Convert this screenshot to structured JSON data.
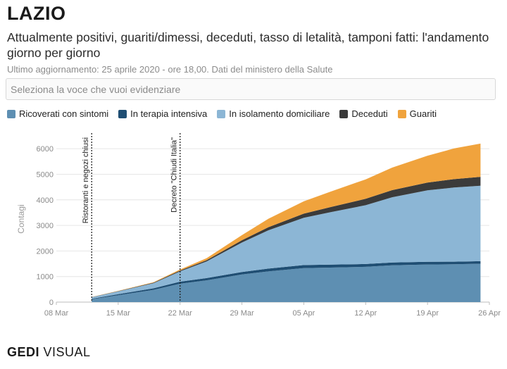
{
  "header": {
    "title": "LAZIO",
    "subtitle": "Attualmente positivi, guariti/dimessi, deceduti, tasso di letalità, tamponi fatti: l'andamento giorno per giorno",
    "updated": "Ultimo aggiornamento: 25 aprile 2020 - ore 18,00. Dati del ministero della Salute"
  },
  "selector": {
    "placeholder": "Seleziona la voce che vuoi evidenziare"
  },
  "brand": {
    "bold": "GEDI",
    "light": " VISUAL"
  },
  "colors": {
    "ricoverati": "#5e8fb2",
    "terapia": "#1f4e73",
    "isolamento": "#8cb6d5",
    "deceduti": "#3b3b3b",
    "guariti": "#f0a33d"
  },
  "chart_data": {
    "type": "area",
    "stacked": true,
    "ylabel": "Contagi",
    "xlabel": "",
    "ylim": [
      0,
      6500
    ],
    "yticks": [
      0,
      1000,
      2000,
      3000,
      4000,
      5000,
      6000
    ],
    "xticks": [
      "08 Mar",
      "15 Mar",
      "22 Mar",
      "29 Mar",
      "05 Apr",
      "12 Apr",
      "19 Apr",
      "26 Apr"
    ],
    "x": [
      "2020-03-12",
      "2020-03-15",
      "2020-03-19",
      "2020-03-22",
      "2020-03-25",
      "2020-03-29",
      "2020-04-01",
      "2020-04-05",
      "2020-04-08",
      "2020-04-12",
      "2020-04-15",
      "2020-04-19",
      "2020-04-22",
      "2020-04-25"
    ],
    "series": [
      {
        "key": "ricoverati",
        "name": "Ricoverati con sintomi",
        "values": [
          110,
          270,
          480,
          720,
          850,
          1080,
          1200,
          1330,
          1350,
          1380,
          1440,
          1470,
          1480,
          1500
        ]
      },
      {
        "key": "terapia",
        "name": "In terapia intensiva",
        "values": [
          20,
          40,
          60,
          80,
          90,
          100,
          110,
          120,
          115,
          110,
          110,
          105,
          100,
          100
        ]
      },
      {
        "key": "isolamento",
        "name": "In isolamento domiciliare",
        "values": [
          60,
          110,
          200,
          400,
          650,
          1150,
          1500,
          1850,
          2050,
          2300,
          2550,
          2800,
          2900,
          2950
        ]
      },
      {
        "key": "deceduti",
        "name": "Deceduti",
        "values": [
          5,
          10,
          20,
          35,
          50,
          90,
          120,
          160,
          200,
          250,
          280,
          300,
          330,
          350
        ]
      },
      {
        "key": "guariti",
        "name": "Guariti",
        "values": [
          5,
          10,
          20,
          40,
          80,
          200,
          330,
          480,
          600,
          760,
          880,
          1050,
          1200,
          1300
        ]
      }
    ],
    "annotations": [
      {
        "date": "2020-03-12",
        "text": "Ristoranti e negozi chiusi"
      },
      {
        "date": "2020-03-22",
        "text": "Decreto \"Chiudi Italia\""
      }
    ],
    "grid": true
  }
}
